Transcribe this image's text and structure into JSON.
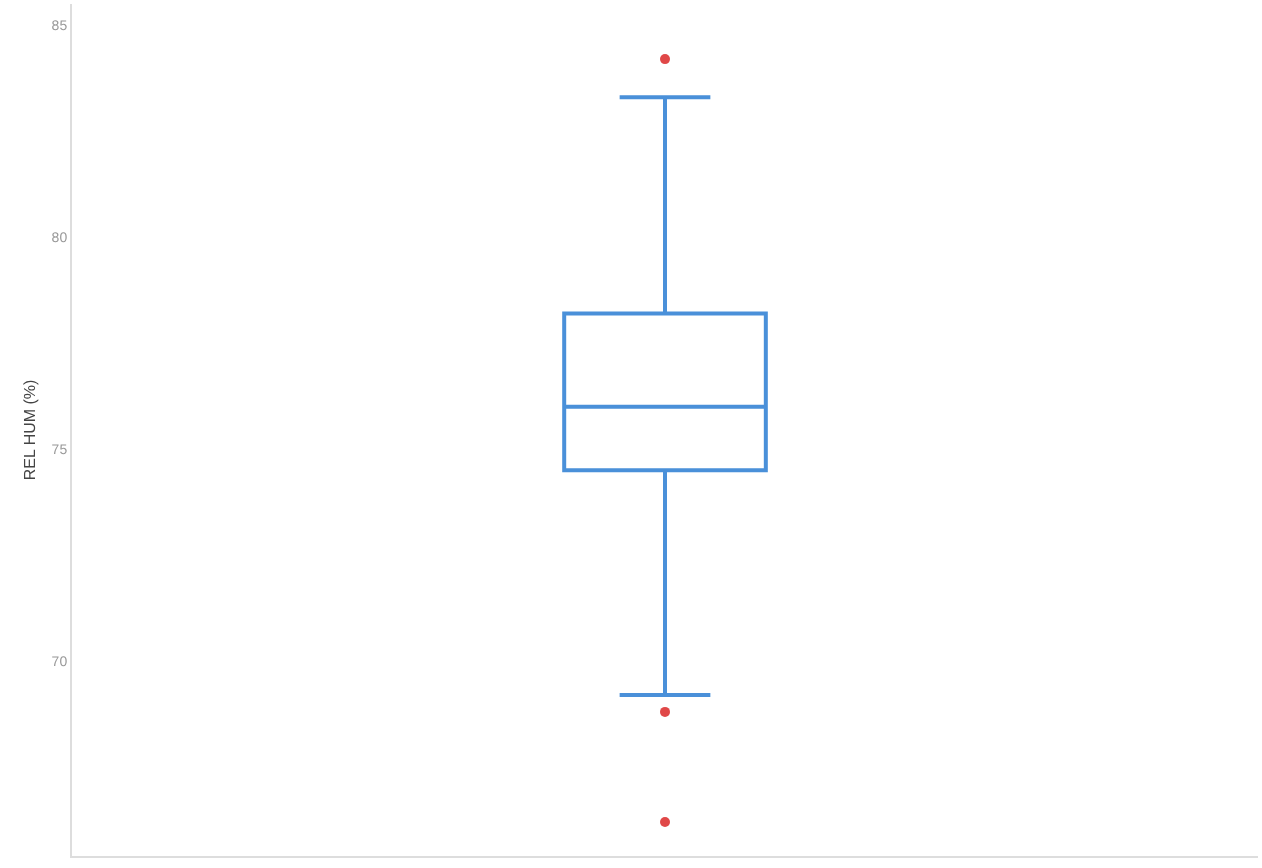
{
  "chart_data": {
    "type": "box",
    "ylabel": "REL HUM (%)",
    "categories": [
      null
    ],
    "boxes": [
      {
        "low": 69.2,
        "q1": 74.5,
        "median": 76.0,
        "q3": 78.2,
        "high": 83.3,
        "outliers": [
          84.2,
          68.8,
          66.2
        ]
      }
    ],
    "color": "#4a90d9",
    "ylim": [
      65.4,
      85.5
    ],
    "yticks": [
      70,
      75,
      80,
      85
    ],
    "grid": false
  }
}
